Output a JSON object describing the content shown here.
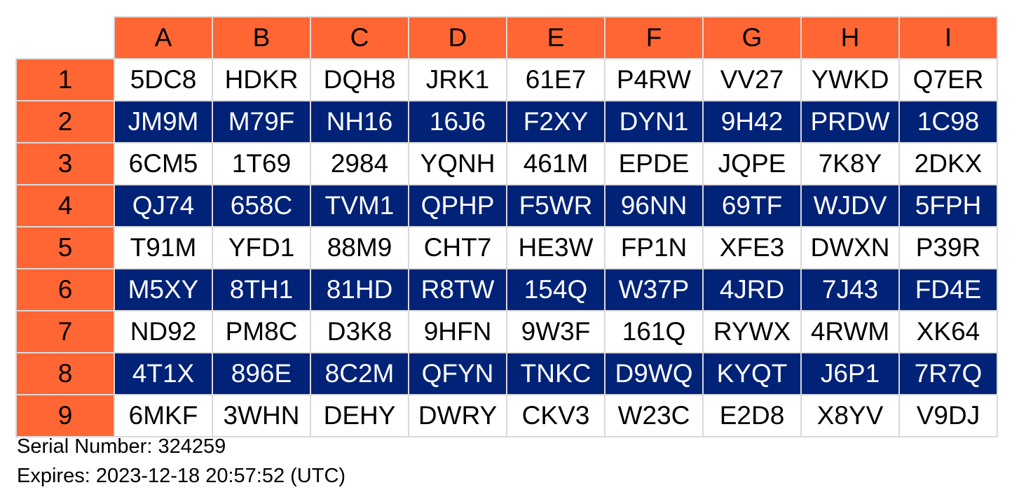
{
  "colors": {
    "accent": "#ff6633",
    "band": "#002277",
    "band_text": "#ffffff",
    "text": "#000000"
  },
  "grid": {
    "columns": [
      "A",
      "B",
      "C",
      "D",
      "E",
      "F",
      "G",
      "H",
      "I"
    ],
    "rows": [
      {
        "label": "1",
        "cells": [
          "5DC8",
          "HDKR",
          "DQH8",
          "JRK1",
          "61E7",
          "P4RW",
          "VV27",
          "YWKD",
          "Q7ER"
        ]
      },
      {
        "label": "2",
        "cells": [
          "JM9M",
          "M79F",
          "NH16",
          "16J6",
          "F2XY",
          "DYN1",
          "9H42",
          "PRDW",
          "1C98"
        ]
      },
      {
        "label": "3",
        "cells": [
          "6CM5",
          "1T69",
          "2984",
          "YQNH",
          "461M",
          "EPDE",
          "JQPE",
          "7K8Y",
          "2DKX"
        ]
      },
      {
        "label": "4",
        "cells": [
          "QJ74",
          "658C",
          "TVM1",
          "QPHP",
          "F5WR",
          "96NN",
          "69TF",
          "WJDV",
          "5FPH"
        ]
      },
      {
        "label": "5",
        "cells": [
          "T91M",
          "YFD1",
          "88M9",
          "CHT7",
          "HE3W",
          "FP1N",
          "XFE3",
          "DWXN",
          "P39R"
        ]
      },
      {
        "label": "6",
        "cells": [
          "M5XY",
          "8TH1",
          "81HD",
          "R8TW",
          "154Q",
          "W37P",
          "4JRD",
          "7J43",
          "FD4E"
        ]
      },
      {
        "label": "7",
        "cells": [
          "ND92",
          "PM8C",
          "D3K8",
          "9HFN",
          "9W3F",
          "161Q",
          "RYWX",
          "4RWM",
          "XK64"
        ]
      },
      {
        "label": "8",
        "cells": [
          "4T1X",
          "896E",
          "8C2M",
          "QFYN",
          "TNKC",
          "D9WQ",
          "KYQT",
          "J6P1",
          "7R7Q"
        ]
      },
      {
        "label": "9",
        "cells": [
          "6MKF",
          "3WHN",
          "DEHY",
          "DWRY",
          "CKV3",
          "W23C",
          "E2D8",
          "X8YV",
          "V9DJ"
        ]
      }
    ]
  },
  "footer": {
    "serial": "Serial Number: 324259",
    "expires": "Expires: 2023-12-18 20:57:52 (UTC)"
  }
}
